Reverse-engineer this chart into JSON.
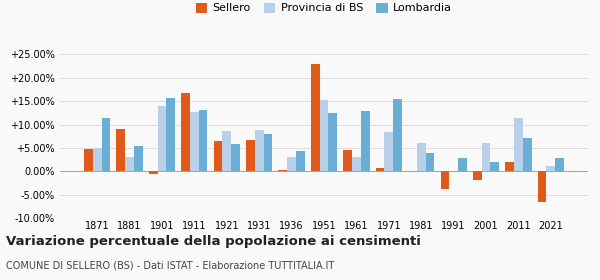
{
  "years": [
    1871,
    1881,
    1901,
    1911,
    1921,
    1931,
    1936,
    1951,
    1961,
    1971,
    1981,
    1991,
    2001,
    2011,
    2021
  ],
  "sellero": [
    4.8,
    9.0,
    -0.5,
    16.7,
    6.5,
    6.7,
    0.3,
    23.0,
    4.5,
    0.7,
    0.2,
    -3.8,
    -1.8,
    2.0,
    -6.5
  ],
  "provincia_bs": [
    4.9,
    3.0,
    14.0,
    12.6,
    8.6,
    8.8,
    3.0,
    15.2,
    3.0,
    8.5,
    6.0,
    0.0,
    6.0,
    11.5,
    1.2
  ],
  "lombardia": [
    11.5,
    5.5,
    15.6,
    13.2,
    5.9,
    7.9,
    4.3,
    12.5,
    12.9,
    15.4,
    4.0,
    2.9,
    2.0,
    7.2,
    2.8
  ],
  "sellero_color": "#e05a1a",
  "provincia_color": "#b8d0e8",
  "lombardia_color": "#6aaed6",
  "title": "Variazione percentuale della popolazione ai censimenti",
  "subtitle": "COMUNE DI SELLERO (BS) - Dati ISTAT - Elaborazione TUTTITALIA.IT",
  "legend_labels": [
    "Sellero",
    "Provincia di BS",
    "Lombardia"
  ],
  "ylim": [
    -10.0,
    27.0
  ],
  "yticks": [
    -10.0,
    -5.0,
    0.0,
    5.0,
    10.0,
    15.0,
    20.0,
    25.0
  ],
  "grid_color": "#dddddd",
  "background_color": "#f9f9f9"
}
